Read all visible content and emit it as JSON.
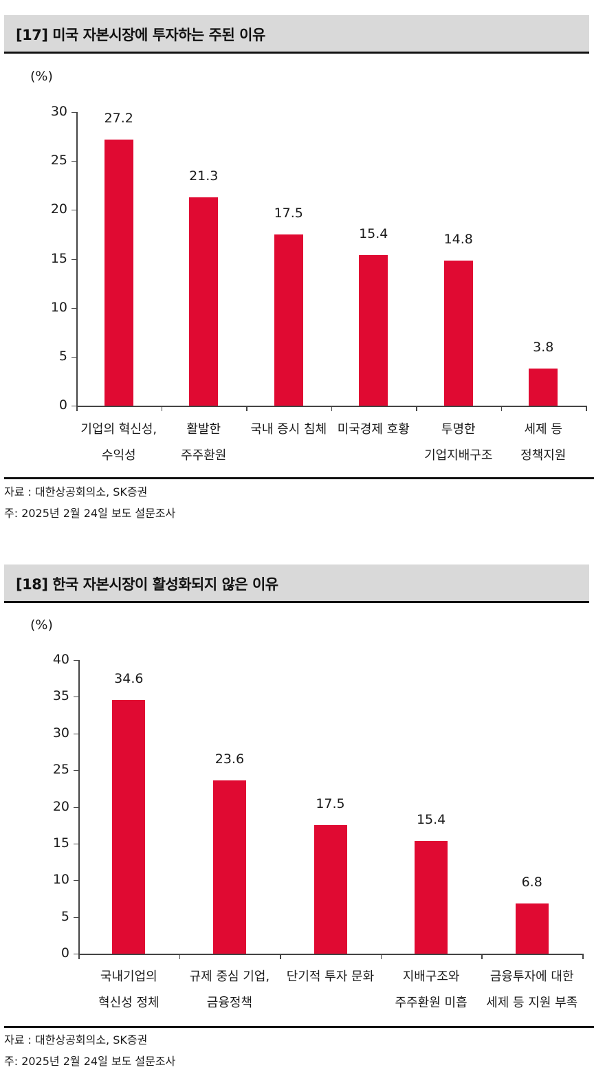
{
  "colors": {
    "bar": "#e00a32",
    "header_bg": "#d9d9d9",
    "rule": "#111111"
  },
  "panels": [
    {
      "title": "[17] 미국 자본시장에 투자하는 주된 이유",
      "unit": "(%)",
      "source": "자료 : 대한상공회의소, SK증권",
      "note": "주: 2025년 2월 24일 보도 설문조사"
    },
    {
      "title": "[18] 한국 자본시장이 활성화되지 않은 이유",
      "unit": "(%)",
      "source": "자료 : 대한상공회의소, SK증권",
      "note": "주: 2025년 2월 24일 보도 설문조사"
    }
  ],
  "chart_data": [
    {
      "type": "bar",
      "title": "[17] 미국 자본시장에 투자하는 주된 이유",
      "xlabel": "",
      "ylabel": "(%)",
      "ylim": [
        0,
        30
      ],
      "yticks": [
        "0",
        "5",
        "10",
        "15",
        "20",
        "25",
        "30"
      ],
      "grid": false,
      "categories": [
        [
          "기업의 혁신성,",
          "수익성"
        ],
        [
          "활발한",
          "주주환원"
        ],
        [
          "국내 증시 침체"
        ],
        [
          "미국경제 호황"
        ],
        [
          "투명한",
          "기업지배구조"
        ],
        [
          "세제 등",
          "정책지원"
        ]
      ],
      "values": [
        27.2,
        21.3,
        17.5,
        15.4,
        14.8,
        3.8
      ],
      "value_labels": [
        "27.2",
        "21.3",
        "17.5",
        "15.4",
        "14.8",
        "3.8"
      ]
    },
    {
      "type": "bar",
      "title": "[18] 한국 자본시장이 활성화되지 않은 이유",
      "xlabel": "",
      "ylabel": "(%)",
      "ylim": [
        0,
        40
      ],
      "yticks": [
        "0",
        "5",
        "10",
        "15",
        "20",
        "25",
        "30",
        "35",
        "40"
      ],
      "grid": false,
      "categories": [
        [
          "국내기업의",
          "혁신성 정체"
        ],
        [
          "규제 중심 기업,",
          "금융정책"
        ],
        [
          "단기적 투자 문화"
        ],
        [
          "지배구조와",
          "주주환원 미흡"
        ],
        [
          "금융투자에 대한",
          "세제 등 지원 부족"
        ]
      ],
      "values": [
        34.6,
        23.6,
        17.5,
        15.4,
        6.8
      ],
      "value_labels": [
        "34.6",
        "23.6",
        "17.5",
        "15.4",
        "6.8"
      ]
    }
  ]
}
